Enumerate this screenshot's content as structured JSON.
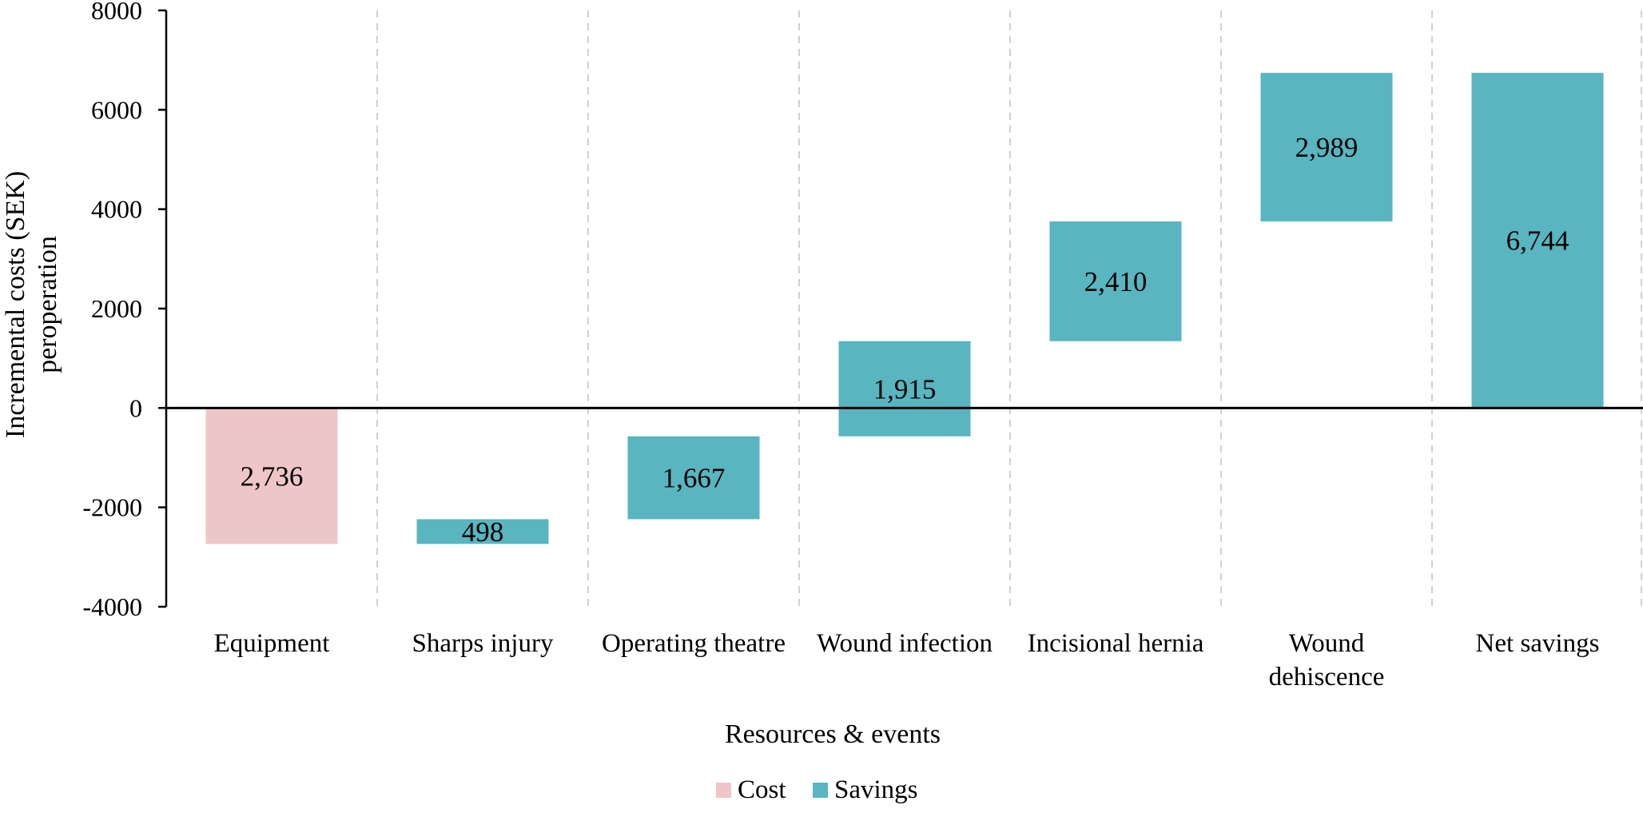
{
  "chart_data": {
    "type": "bar",
    "subtype": "waterfall",
    "title": "",
    "xlabel": "Resources & events",
    "ylabel": [
      "Incremental costs (SEK)",
      "peroperation"
    ],
    "ylim": [
      -4000,
      8000
    ],
    "yticks": [
      "8000",
      "6000",
      "4000",
      "2000",
      "0",
      "-2000",
      "-4000"
    ],
    "ytick_values": [
      8000,
      6000,
      4000,
      2000,
      0,
      -2000,
      -4000
    ],
    "grid": "vertical dashed separators between categories",
    "legend_position": "bottom",
    "categories": [
      [
        "Equipment"
      ],
      [
        "Sharps injury"
      ],
      [
        "Operating theatre"
      ],
      [
        "Wound infection"
      ],
      [
        "Incisional hernia"
      ],
      [
        "Wound",
        "dehiscence"
      ],
      [
        "Net savings"
      ]
    ],
    "bars": [
      {
        "series": "Cost",
        "start": 0,
        "end": -2736,
        "label": "2,736"
      },
      {
        "series": "Savings",
        "start": -2736,
        "end": -2238,
        "label": "498"
      },
      {
        "series": "Savings",
        "start": -2238,
        "end": -571,
        "label": "1,667"
      },
      {
        "series": "Savings",
        "start": -571,
        "end": 1344,
        "label": "1,915"
      },
      {
        "series": "Savings",
        "start": 1344,
        "end": 3754,
        "label": "2,410"
      },
      {
        "series": "Savings",
        "start": 3754,
        "end": 6743,
        "label": "2,989"
      },
      {
        "series": "Savings",
        "start": 0,
        "end": 6744,
        "label": "6,744"
      }
    ],
    "series": [
      {
        "name": "Cost",
        "color": "#efc6c8"
      },
      {
        "name": "Savings",
        "color": "#59b5bf"
      }
    ]
  }
}
